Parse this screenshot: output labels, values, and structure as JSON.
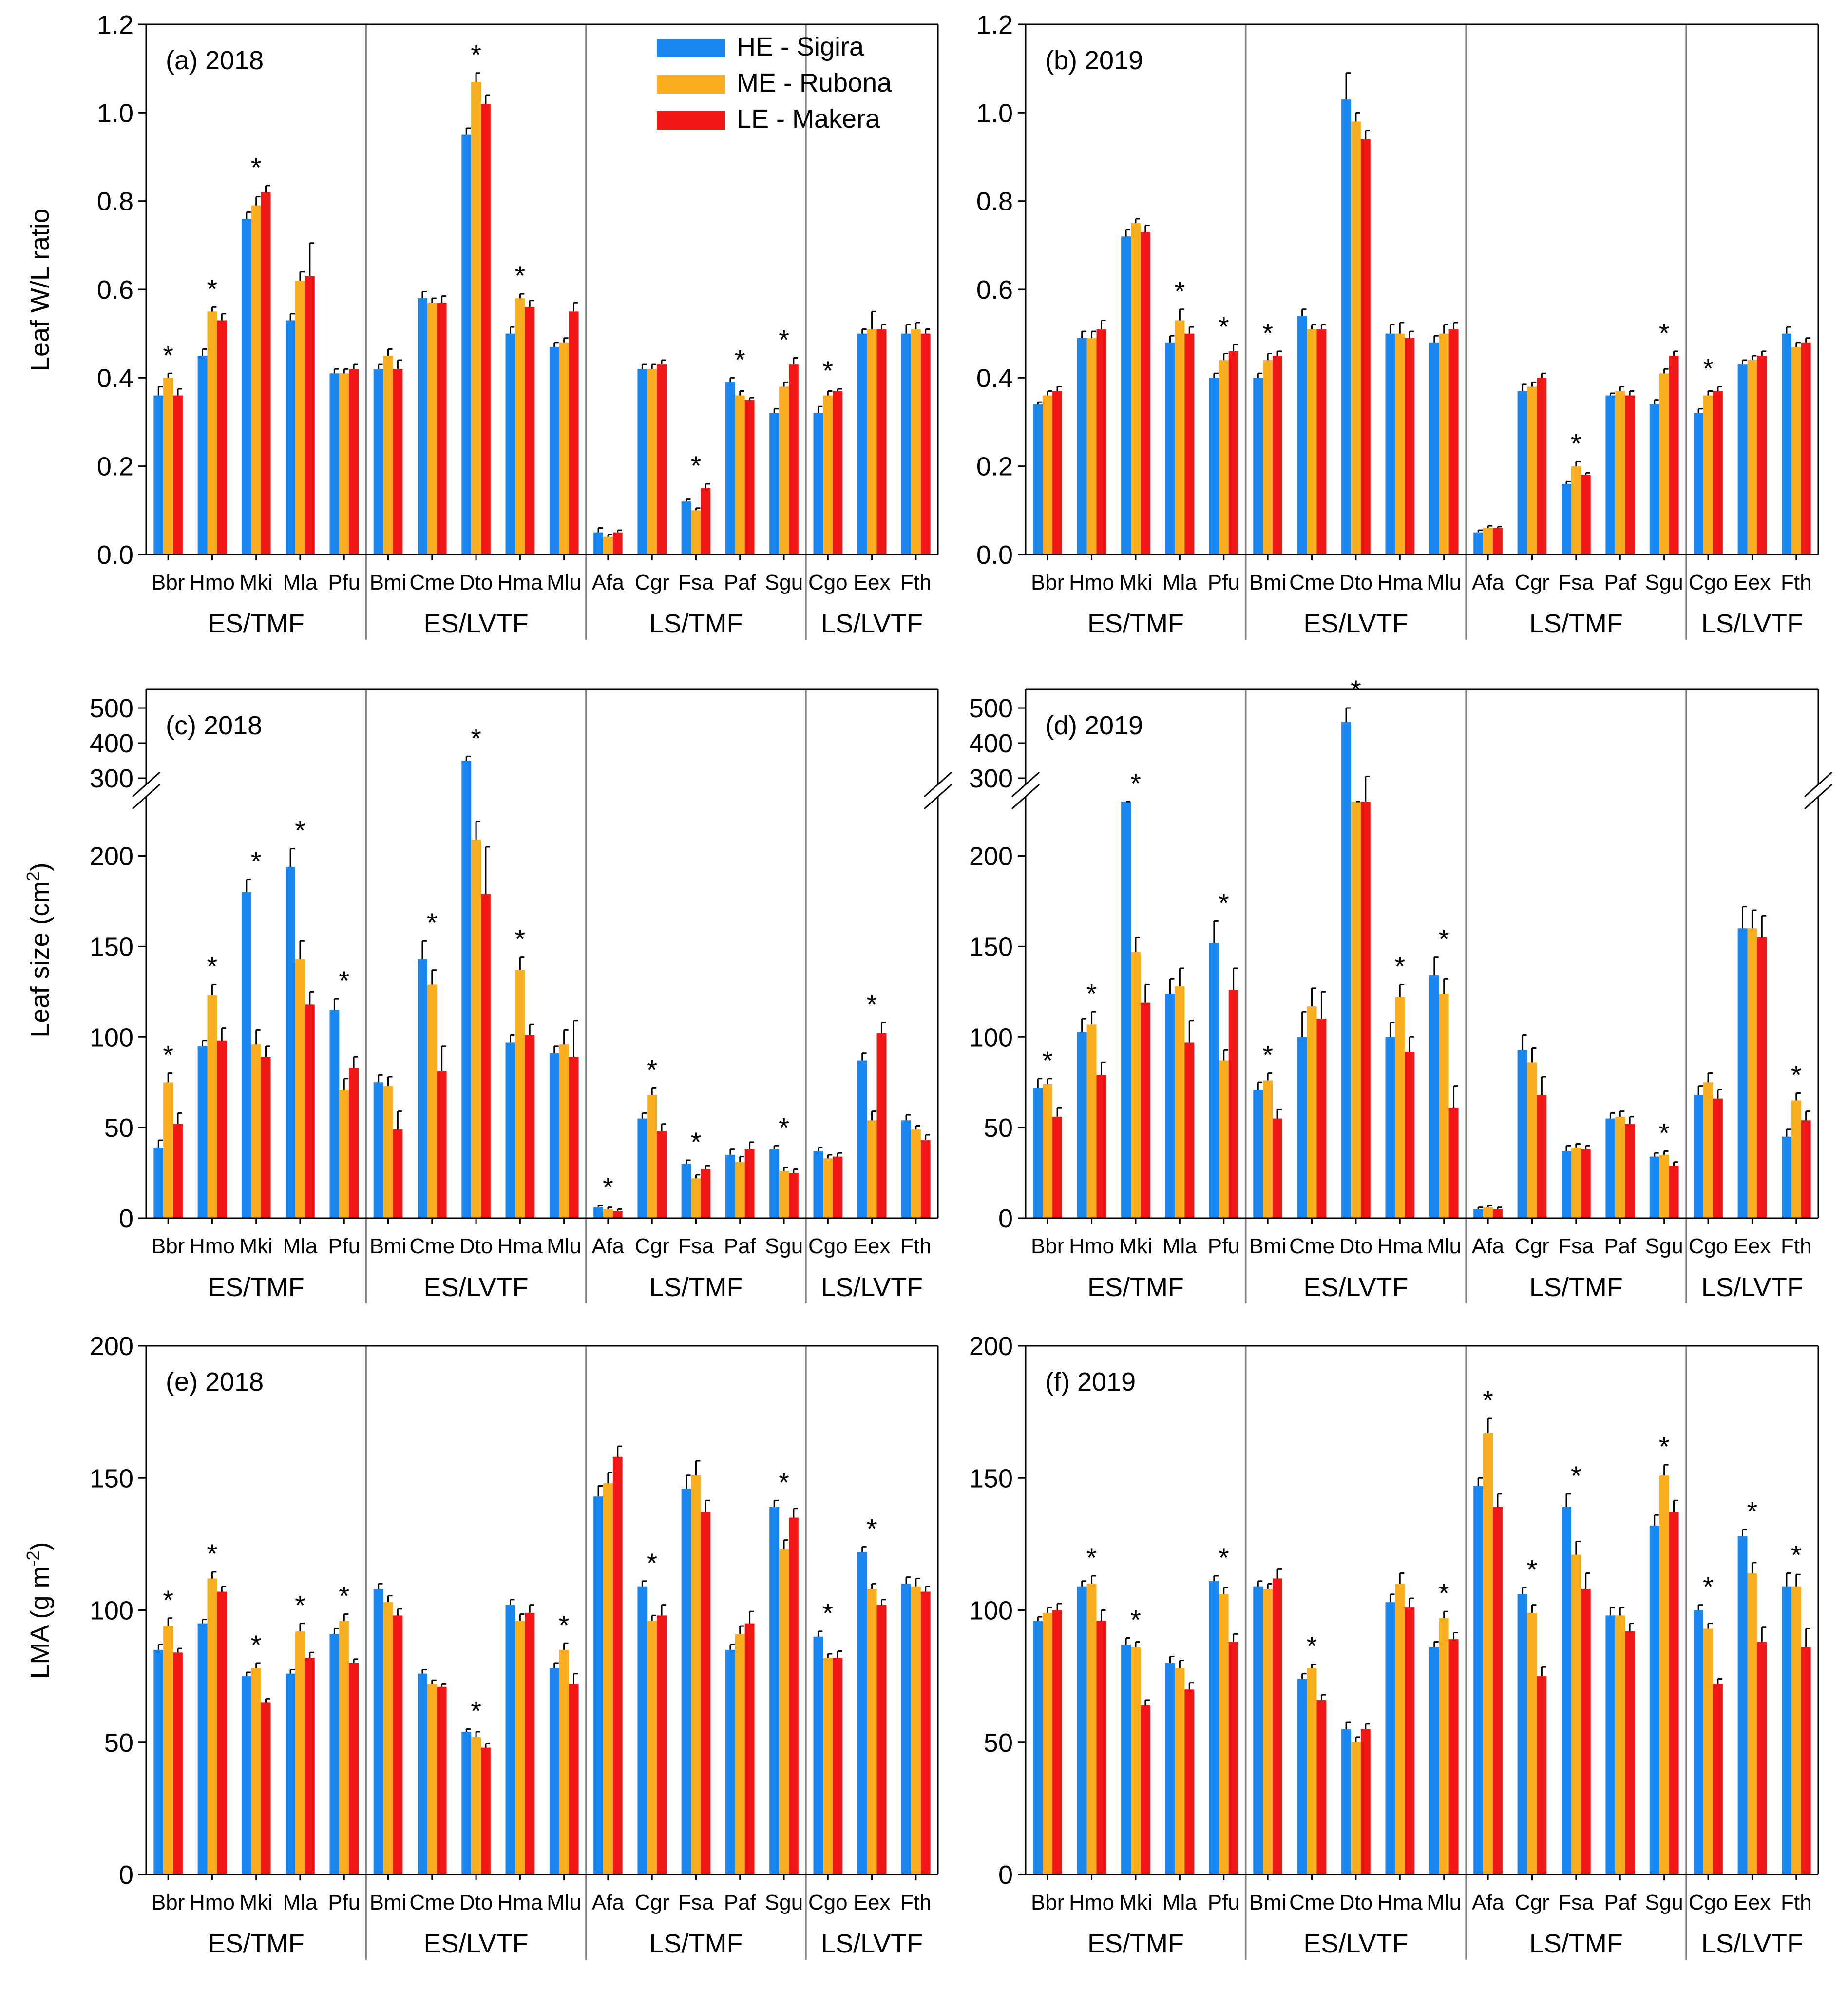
{
  "colors": {
    "HE": "#1A87F0",
    "ME": "#F8AE1F",
    "LE": "#F01616",
    "frame": "#000000",
    "divider": "#808080"
  },
  "legend": [
    {
      "key": "HE",
      "label": "HE - Sigira"
    },
    {
      "key": "ME",
      "label": "ME - Rubona"
    },
    {
      "key": "LE",
      "label": "LE - Makera"
    }
  ],
  "species": [
    "Bbr",
    "Hmo",
    "Mki",
    "Mla",
    "Pfu",
    "Bmi",
    "Cme",
    "Dto",
    "Hma",
    "Mlu",
    "Afa",
    "Cgr",
    "Fsa",
    "Paf",
    "Sgu",
    "Cgo",
    "Eex",
    "Fth"
  ],
  "groups": [
    {
      "label": "ES/TMF",
      "start": 0,
      "end": 4
    },
    {
      "label": "ES/LVTF",
      "start": 5,
      "end": 9
    },
    {
      "label": "LS/TMF",
      "start": 10,
      "end": 14
    },
    {
      "label": "LS/LVTF",
      "start": 15,
      "end": 17
    }
  ],
  "row_labels": {
    "wl": "Leaf W/L ratio",
    "size": "Leaf size (cm",
    "size_sup": "2",
    "size_end": ")",
    "lma": "LMA (g m",
    "lma_sup": "-2",
    "lma_end": ")"
  },
  "chart_data": [
    {
      "id": "a",
      "title": "(a)  2018",
      "type": "bar",
      "metric": "Leaf W/L ratio",
      "year": "2018",
      "ylim": [
        0,
        1.2
      ],
      "yticks": [
        "0.0",
        "0.2",
        "0.4",
        "0.6",
        "0.8",
        "1.0",
        "1.2"
      ],
      "legend": true,
      "series": [
        {
          "name": "HE - Sigira",
          "values": [
            0.36,
            0.45,
            0.76,
            0.53,
            0.41,
            0.42,
            0.58,
            0.95,
            0.5,
            0.47,
            0.05,
            0.42,
            0.12,
            0.39,
            0.32,
            0.32,
            0.5,
            0.5
          ],
          "errors": [
            0.02,
            0.015,
            0.015,
            0.015,
            0.01,
            0.01,
            0.015,
            0.015,
            0.015,
            0.01,
            0.01,
            0.01,
            0.005,
            0.01,
            0.01,
            0.015,
            0.01,
            0.02
          ]
        },
        {
          "name": "ME - Rubona",
          "values": [
            0.4,
            0.55,
            0.79,
            0.62,
            0.41,
            0.45,
            0.57,
            1.07,
            0.58,
            0.48,
            0.04,
            0.42,
            0.1,
            0.36,
            0.38,
            0.36,
            0.51,
            0.51
          ],
          "errors": [
            0.01,
            0.01,
            0.02,
            0.02,
            0.01,
            0.015,
            0.01,
            0.02,
            0.01,
            0.01,
            0.005,
            0.01,
            0.005,
            0.01,
            0.01,
            0.01,
            0.04,
            0.015
          ]
        },
        {
          "name": "LE - Makera",
          "values": [
            0.36,
            0.53,
            0.82,
            0.63,
            0.42,
            0.42,
            0.57,
            1.02,
            0.56,
            0.55,
            0.05,
            0.43,
            0.15,
            0.35,
            0.43,
            0.37,
            0.51,
            0.5
          ],
          "errors": [
            0.015,
            0.015,
            0.015,
            0.075,
            0.01,
            0.02,
            0.015,
            0.02,
            0.015,
            0.02,
            0.005,
            0.01,
            0.01,
            0.005,
            0.015,
            0.005,
            0.01,
            0.01
          ]
        }
      ],
      "stars": [
        0,
        1,
        2,
        7,
        8,
        12,
        13,
        14,
        15
      ]
    },
    {
      "id": "b",
      "title": "(b)  2019",
      "type": "bar",
      "metric": "Leaf W/L ratio",
      "year": "2019",
      "ylim": [
        0,
        1.2
      ],
      "yticks": [
        "0.0",
        "0.2",
        "0.4",
        "0.6",
        "0.8",
        "1.0",
        "1.2"
      ],
      "legend": false,
      "series": [
        {
          "name": "HE - Sigira",
          "values": [
            0.34,
            0.49,
            0.72,
            0.48,
            0.4,
            0.4,
            0.54,
            1.03,
            0.5,
            0.48,
            0.05,
            0.37,
            0.16,
            0.36,
            0.34,
            0.32,
            0.43,
            0.5
          ],
          "errors": [
            0.005,
            0.015,
            0.015,
            0.015,
            0.01,
            0.01,
            0.015,
            0.06,
            0.02,
            0.015,
            0.005,
            0.015,
            0.005,
            0.005,
            0.01,
            0.01,
            0.01,
            0.015
          ]
        },
        {
          "name": "ME - Rubona",
          "values": [
            0.36,
            0.49,
            0.75,
            0.53,
            0.44,
            0.44,
            0.51,
            0.98,
            0.5,
            0.5,
            0.06,
            0.38,
            0.2,
            0.37,
            0.41,
            0.36,
            0.44,
            0.47
          ],
          "errors": [
            0.01,
            0.015,
            0.01,
            0.025,
            0.015,
            0.015,
            0.01,
            0.02,
            0.025,
            0.02,
            0.005,
            0.01,
            0.01,
            0.01,
            0.01,
            0.01,
            0.01,
            0.01
          ]
        },
        {
          "name": "LE - Makera",
          "values": [
            0.37,
            0.51,
            0.73,
            0.5,
            0.46,
            0.45,
            0.51,
            0.94,
            0.49,
            0.51,
            0.06,
            0.4,
            0.18,
            0.36,
            0.45,
            0.37,
            0.45,
            0.48
          ],
          "errors": [
            0.01,
            0.02,
            0.015,
            0.015,
            0.015,
            0.01,
            0.01,
            0.02,
            0.015,
            0.015,
            0.003,
            0.01,
            0.005,
            0.01,
            0.01,
            0.01,
            0.01,
            0.01
          ]
        }
      ],
      "stars": [
        3,
        4,
        5,
        12,
        14,
        15
      ]
    },
    {
      "id": "c",
      "title": "(c)  2018",
      "type": "bar",
      "metric": "Leaf size (cm2)",
      "year": "2018",
      "ylim": [
        0,
        500
      ],
      "axis_break": {
        "lower_top": 230,
        "upper": [
          300,
          500
        ]
      },
      "yticks": [
        "0",
        "50",
        "100",
        "150",
        "200",
        "300",
        "400",
        "500"
      ],
      "legend": false,
      "series": [
        {
          "name": "HE - Sigira",
          "values": [
            39,
            95,
            180,
            194,
            115,
            75,
            143,
            350,
            97,
            91,
            6,
            55,
            30,
            35,
            38,
            37,
            87,
            54
          ],
          "errors": [
            4,
            3,
            7,
            10,
            6,
            4,
            10,
            12,
            4,
            4,
            1,
            3,
            2,
            3,
            2,
            2,
            4,
            3
          ]
        },
        {
          "name": "ME - Rubona",
          "values": [
            75,
            123,
            96,
            143,
            71,
            73,
            129,
            209,
            137,
            96,
            5,
            68,
            22,
            31,
            26,
            33,
            54,
            49
          ],
          "errors": [
            5,
            6,
            8,
            10,
            6,
            5,
            8,
            10,
            7,
            8,
            1,
            4,
            2,
            3,
            2,
            2,
            5,
            2
          ]
        },
        {
          "name": "LE - Makera",
          "values": [
            52,
            98,
            89,
            118,
            83,
            49,
            81,
            179,
            101,
            89,
            4,
            48,
            27,
            38,
            25,
            34,
            102,
            43
          ],
          "errors": [
            6,
            7,
            6,
            7,
            6,
            10,
            14,
            26,
            6,
            20,
            1,
            4,
            2,
            4,
            2,
            2,
            6,
            3
          ]
        }
      ],
      "stars": [
        0,
        1,
        2,
        3,
        4,
        6,
        7,
        8,
        10,
        11,
        12,
        14,
        16
      ]
    },
    {
      "id": "d",
      "title": "(d)  2019",
      "type": "bar",
      "metric": "Leaf size (cm2)",
      "year": "2019",
      "ylim": [
        0,
        500
      ],
      "axis_break": {
        "lower_top": 230,
        "upper": [
          300,
          500
        ]
      },
      "yticks": [
        "0",
        "50",
        "100",
        "150",
        "200",
        "300",
        "400",
        "500"
      ],
      "legend": false,
      "series": [
        {
          "name": "HE - Sigira",
          "values": [
            72,
            103,
            255,
            124,
            152,
            71,
            100,
            460,
            100,
            134,
            5,
            93,
            37,
            55,
            34,
            68,
            160,
            45
          ],
          "errors": [
            5,
            7,
            15,
            8,
            12,
            4,
            14,
            40,
            8,
            10,
            1,
            8,
            3,
            3,
            2,
            5,
            12,
            4
          ]
        },
        {
          "name": "ME - Rubona",
          "values": [
            74,
            107,
            147,
            128,
            87,
            76,
            117,
            245,
            122,
            124,
            6,
            86,
            39,
            56,
            35,
            75,
            160,
            65
          ],
          "errors": [
            3,
            7,
            8,
            10,
            6,
            4,
            10,
            20,
            7,
            8,
            1,
            8,
            2,
            3,
            2,
            5,
            10,
            4
          ]
        },
        {
          "name": "LE - Makera",
          "values": [
            56,
            79,
            119,
            97,
            126,
            55,
            110,
            280,
            92,
            61,
            5,
            68,
            38,
            52,
            29,
            66,
            155,
            54
          ],
          "errors": [
            5,
            7,
            10,
            12,
            12,
            5,
            15,
            25,
            8,
            12,
            1,
            10,
            2,
            4,
            2,
            5,
            12,
            5
          ]
        }
      ],
      "stars": [
        0,
        1,
        2,
        4,
        5,
        7,
        8,
        9,
        14,
        17
      ]
    },
    {
      "id": "e",
      "title": "(e)  2018",
      "type": "bar",
      "metric": "LMA (g m-2)",
      "year": "2018",
      "ylim": [
        0,
        200
      ],
      "yticks": [
        "0",
        "50",
        "100",
        "150",
        "200"
      ],
      "legend": false,
      "series": [
        {
          "name": "HE - Sigira",
          "values": [
            85,
            95,
            75,
            76,
            91,
            108,
            76,
            54,
            102,
            78,
            143,
            109,
            146,
            85,
            139,
            90,
            122,
            110
          ],
          "errors": [
            2,
            1.5,
            1.5,
            1.5,
            2,
            2,
            1.5,
            1,
            2,
            2,
            4,
            2,
            5,
            2,
            2.5,
            2,
            2,
            2.5
          ]
        },
        {
          "name": "ME - Rubona",
          "values": [
            94,
            112,
            78,
            92,
            96,
            103,
            72,
            52,
            96,
            85,
            148,
            96,
            151,
            91,
            123,
            82,
            108,
            109
          ],
          "errors": [
            3,
            2.5,
            2,
            3,
            2.5,
            2.5,
            1.5,
            2,
            2.5,
            2.5,
            4,
            2,
            5.5,
            3,
            3.5,
            1.5,
            2,
            3
          ]
        },
        {
          "name": "LE - Makera",
          "values": [
            84,
            107,
            65,
            82,
            80,
            98,
            71,
            48,
            99,
            72,
            158,
            98,
            137,
            95,
            135,
            82,
            102,
            107
          ],
          "errors": [
            1.5,
            2,
            1.5,
            2,
            1.5,
            2.5,
            1,
            1.5,
            3,
            4,
            4,
            4,
            4.5,
            4.5,
            3.5,
            2.5,
            2,
            2
          ]
        }
      ],
      "stars": [
        0,
        1,
        2,
        3,
        4,
        7,
        9,
        11,
        14,
        15,
        16
      ]
    },
    {
      "id": "f",
      "title": "(f)  2019",
      "type": "bar",
      "metric": "LMA (g m-2)",
      "year": "2019",
      "ylim": [
        0,
        200
      ],
      "yticks": [
        "0",
        "50",
        "100",
        "150",
        "200"
      ],
      "legend": false,
      "series": [
        {
          "name": "HE - Sigira",
          "values": [
            96,
            109,
            87,
            80,
            111,
            109,
            74,
            55,
            103,
            86,
            147,
            106,
            139,
            98,
            132,
            100,
            128,
            109
          ],
          "errors": [
            1.5,
            2,
            2.5,
            2.5,
            2,
            2,
            2,
            2.5,
            3,
            2,
            3,
            2.5,
            5,
            3,
            4,
            2,
            2.5,
            5
          ]
        },
        {
          "name": "ME - Rubona",
          "values": [
            99,
            110,
            86,
            78,
            106,
            108,
            78,
            50,
            110,
            97,
            167,
            99,
            121,
            98,
            151,
            93,
            114,
            109
          ],
          "errors": [
            2,
            3,
            2,
            3,
            2.5,
            2,
            1.5,
            2,
            4,
            2.5,
            5.5,
            3,
            5,
            3,
            4,
            2,
            4,
            4.5
          ]
        },
        {
          "name": "LE - Makera",
          "values": [
            100,
            96,
            64,
            70,
            88,
            112,
            66,
            55,
            101,
            89,
            139,
            75,
            108,
            92,
            137,
            72,
            88,
            86
          ],
          "errors": [
            2.5,
            4,
            2,
            2.5,
            3,
            3.5,
            2,
            2,
            3.5,
            2.5,
            5,
            3.5,
            6,
            3,
            4.5,
            2,
            5.5,
            7
          ]
        }
      ],
      "stars": [
        1,
        2,
        4,
        6,
        9,
        10,
        11,
        12,
        14,
        15,
        16,
        17
      ]
    }
  ]
}
